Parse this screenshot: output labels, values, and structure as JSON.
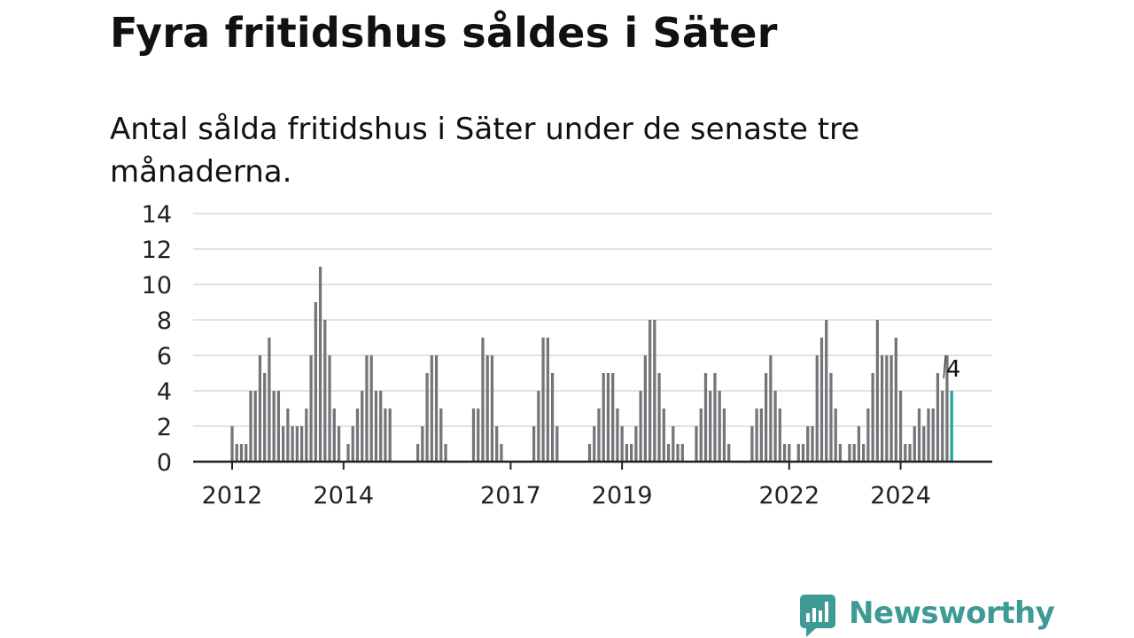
{
  "title": "Fyra fritidshus såldes i Säter",
  "subtitle": "Antal sålda fritidshus i Säter under de senaste tre månaderna.",
  "brand": {
    "name": "Newsworthy",
    "accent_color": "#3d9a95"
  },
  "chart_data": {
    "type": "bar",
    "title": "Fyra fritidshus såldes i Säter",
    "subtitle": "Antal sålda fritidshus i Säter under de senaste tre månaderna.",
    "xlabel": "",
    "ylabel": "",
    "ylim": [
      0,
      14
    ],
    "yticks": [
      0,
      2,
      4,
      6,
      8,
      10,
      12,
      14
    ],
    "grid": true,
    "legend": "none",
    "bar_color": "#757479",
    "highlight_color": "#1aa39b",
    "x_start": "2012-01",
    "x_end": "2025-01",
    "x_ticks": [
      {
        "label": "2012",
        "at": "2012-01"
      },
      {
        "label": "2014",
        "at": "2014-01"
      },
      {
        "label": "2017",
        "at": "2017-01"
      },
      {
        "label": "2019",
        "at": "2019-01"
      },
      {
        "label": "2022",
        "at": "2022-01"
      },
      {
        "label": "2024",
        "at": "2024-01"
      }
    ],
    "series": [
      {
        "x": [
          "2012-01",
          "2012-02",
          "2012-03",
          "2012-04",
          "2012-05",
          "2012-06",
          "2012-07",
          "2012-08",
          "2012-09",
          "2012-10",
          "2012-11",
          "2012-12",
          "2013-01",
          "2013-02",
          "2013-03",
          "2013-04",
          "2013-05",
          "2013-06",
          "2013-07",
          "2013-08",
          "2013-09",
          "2013-10",
          "2013-11",
          "2013-12",
          "2014-01",
          "2014-02",
          "2014-03",
          "2014-04",
          "2014-05",
          "2014-06",
          "2014-07",
          "2014-08",
          "2014-09",
          "2014-10",
          "2014-11",
          "2014-12",
          "2015-01",
          "2015-02",
          "2015-03",
          "2015-04",
          "2015-05",
          "2015-06",
          "2015-07",
          "2015-08",
          "2015-09",
          "2015-10",
          "2015-11",
          "2015-12",
          "2016-01",
          "2016-02",
          "2016-03",
          "2016-04",
          "2016-05",
          "2016-06",
          "2016-07",
          "2016-08",
          "2016-09",
          "2016-10",
          "2016-11",
          "2016-12",
          "2017-01",
          "2017-02",
          "2017-03",
          "2017-04",
          "2017-05",
          "2017-06",
          "2017-07",
          "2017-08",
          "2017-09",
          "2017-10",
          "2017-11",
          "2017-12",
          "2018-01",
          "2018-02",
          "2018-03",
          "2018-04",
          "2018-05",
          "2018-06",
          "2018-07",
          "2018-08",
          "2018-09",
          "2018-10",
          "2018-11",
          "2018-12",
          "2019-01",
          "2019-02",
          "2019-03",
          "2019-04",
          "2019-05",
          "2019-06",
          "2019-07",
          "2019-08",
          "2019-09",
          "2019-10",
          "2019-11",
          "2019-12",
          "2020-01",
          "2020-02",
          "2020-03",
          "2020-04",
          "2020-05",
          "2020-06",
          "2020-07",
          "2020-08",
          "2020-09",
          "2020-10",
          "2020-11",
          "2020-12",
          "2021-01",
          "2021-02",
          "2021-03",
          "2021-04",
          "2021-05",
          "2021-06",
          "2021-07",
          "2021-08",
          "2021-09",
          "2021-10",
          "2021-11",
          "2021-12",
          "2022-01",
          "2022-02",
          "2022-03",
          "2022-04",
          "2022-05",
          "2022-06",
          "2022-07",
          "2022-08",
          "2022-09",
          "2022-10",
          "2022-11",
          "2022-12",
          "2023-01",
          "2023-02",
          "2023-03",
          "2023-04",
          "2023-05",
          "2023-06",
          "2023-07",
          "2023-08",
          "2023-09",
          "2023-10",
          "2023-11",
          "2023-12",
          "2024-01",
          "2024-02",
          "2024-03",
          "2024-04",
          "2024-05",
          "2024-06",
          "2024-07",
          "2024-08",
          "2024-09",
          "2024-10",
          "2024-11",
          "2024-12"
        ],
        "values": [
          2,
          1,
          1,
          1,
          4,
          4,
          6,
          5,
          7,
          4,
          4,
          2,
          3,
          2,
          2,
          2,
          3,
          6,
          9,
          11,
          8,
          6,
          3,
          2,
          0,
          1,
          2,
          3,
          4,
          6,
          6,
          4,
          4,
          3,
          3,
          0,
          0,
          0,
          0,
          0,
          1,
          2,
          5,
          6,
          6,
          3,
          1,
          0,
          0,
          0,
          0,
          0,
          3,
          3,
          7,
          6,
          6,
          2,
          1,
          0,
          0,
          0,
          0,
          0,
          0,
          2,
          4,
          7,
          7,
          5,
          2,
          0,
          0,
          0,
          0,
          0,
          0,
          1,
          2,
          3,
          5,
          5,
          5,
          3,
          2,
          1,
          1,
          2,
          4,
          6,
          8,
          8,
          5,
          3,
          1,
          2,
          1,
          1,
          0,
          0,
          2,
          3,
          5,
          4,
          5,
          4,
          3,
          1,
          0,
          0,
          0,
          0,
          2,
          3,
          3,
          5,
          6,
          4,
          3,
          1,
          1,
          0,
          1,
          1,
          2,
          2,
          6,
          7,
          8,
          5,
          3,
          1,
          0,
          1,
          1,
          2,
          1,
          3,
          5,
          8,
          6,
          6,
          6,
          7,
          4,
          1,
          1,
          2,
          3,
          2,
          3,
          3,
          5,
          4,
          6,
          4
        ]
      }
    ],
    "highlight": {
      "x": "2024-12",
      "value": 4,
      "label": "4"
    }
  }
}
